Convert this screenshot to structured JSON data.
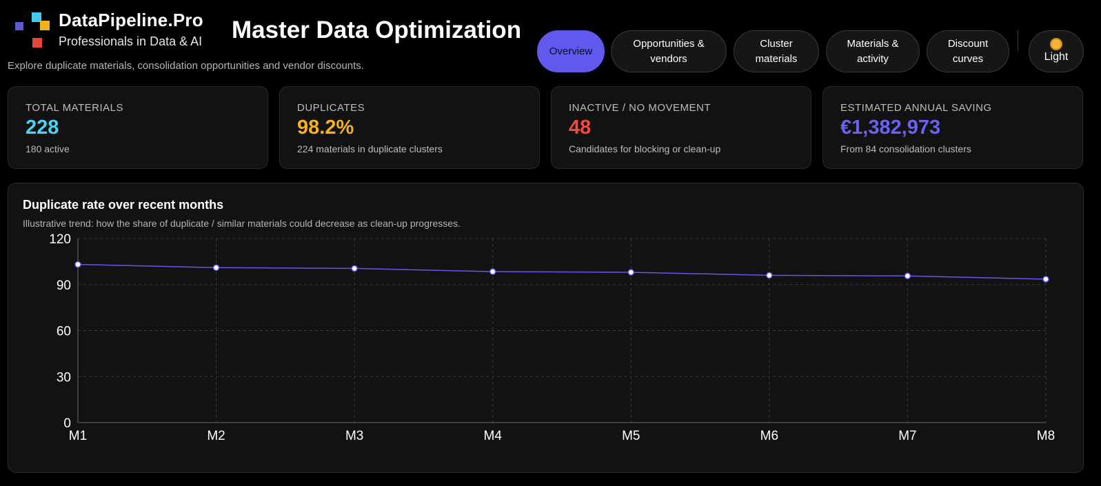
{
  "brand": {
    "name": "DataPipeline.Pro",
    "tagline": "Professionals in Data & AI",
    "logo_colors": [
      "#5b5bd6",
      "#45c8f2",
      "#f2b21c",
      "#e8453c"
    ]
  },
  "header": {
    "title": "Master Data Optimization",
    "subtitle": "Explore duplicate materials, consolidation opportunities and vendor discounts."
  },
  "nav": {
    "tabs": [
      {
        "label": "Overview",
        "active": true
      },
      {
        "label": "Opportunities &\nvendors",
        "active": false
      },
      {
        "label": "Cluster\nmaterials",
        "active": false
      },
      {
        "label": "Materials &\nactivity",
        "active": false
      },
      {
        "label": "Discount\ncurves",
        "active": false
      }
    ],
    "theme_toggle": {
      "label": "Light",
      "icon": "sun-icon"
    }
  },
  "kpis": [
    {
      "label": "TOTAL MATERIALS",
      "value": "228",
      "sub": "180 active",
      "color": "#4dd2f5"
    },
    {
      "label": "DUPLICATES",
      "value": "98.2%",
      "sub": "224 materials in duplicate clusters",
      "color": "#f5b21a"
    },
    {
      "label": "INACTIVE / NO MOVEMENT",
      "value": "48",
      "sub": "Candidates for blocking or clean-up",
      "color": "#ef4a3c"
    },
    {
      "label": "ESTIMATED ANNUAL SAVING",
      "value": "€1,382,973",
      "sub": "From 84 consolidation clusters",
      "color": "#6a63f2"
    }
  ],
  "chart": {
    "title": "Duplicate rate over recent months",
    "subtitle": "Illustrative trend: how the share of duplicate / similar materials could decrease as clean-up progresses."
  },
  "chart_data": {
    "type": "line",
    "categories": [
      "M1",
      "M2",
      "M3",
      "M4",
      "M5",
      "M6",
      "M7",
      "M8"
    ],
    "series": [
      {
        "values": [
          103.1,
          101.0,
          100.5,
          98.4,
          98.0,
          96.0,
          95.6,
          93.5
        ],
        "color": "#6159ee"
      }
    ],
    "yticks": [
      0,
      30,
      60,
      90,
      120
    ],
    "ylim": [
      0,
      120
    ],
    "grid": true,
    "legend": "none"
  }
}
